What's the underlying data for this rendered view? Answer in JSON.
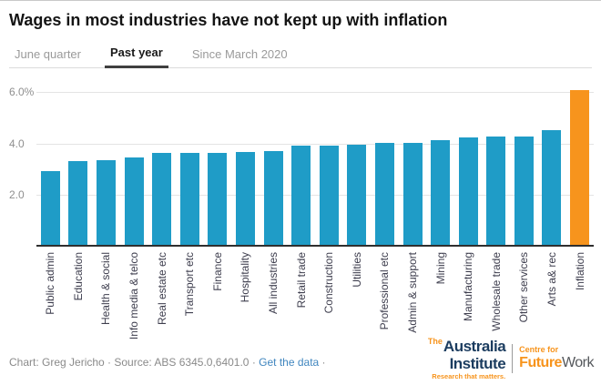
{
  "header": {
    "title": "Wages in most industries have not kept up with inflation"
  },
  "tabs": {
    "items": [
      {
        "label": "June quarter",
        "active": false
      },
      {
        "label": "Past year",
        "active": true
      },
      {
        "label": "Since March 2020",
        "active": false
      }
    ]
  },
  "chart_data": {
    "type": "bar",
    "title": "Wages in most industries have not kept up with inflation",
    "subtitle_tab": "Past year",
    "categories": [
      "Public admin",
      "Education",
      "Health & social",
      "Info media & telco",
      "Real estate etc",
      "Transport etc",
      "Finance",
      "Hospitality",
      "All industries",
      "Retail trade",
      "Construction",
      "Utilities",
      "Professional etc",
      "Admin & support",
      "Mining",
      "Manufacturing",
      "Wholesale trade",
      "Other services",
      "Arts a& rec",
      "Inflation"
    ],
    "values": [
      2.85,
      3.25,
      3.3,
      3.4,
      3.55,
      3.55,
      3.55,
      3.6,
      3.65,
      3.85,
      3.85,
      3.9,
      3.95,
      3.95,
      4.05,
      4.15,
      4.2,
      4.2,
      4.45,
      6.0
    ],
    "unit": "%",
    "xlabel": "",
    "ylabel": "",
    "ylim": [
      0,
      6
    ],
    "yticks": [
      {
        "label": "6.0%",
        "value": 6
      },
      {
        "label": "4.0",
        "value": 4
      },
      {
        "label": "2.0",
        "value": 2
      }
    ],
    "grid": true,
    "legend": "none",
    "colors": {
      "bar": "#1f9cc7",
      "highlight": "#f7941d"
    },
    "highlight_category": "Inflation"
  },
  "footer": {
    "credit_prefix": "Chart: Greg Jericho · Source: ABS 6345.0,6401.0 · ",
    "link_label": "Get the data",
    "credit_suffix": " ·",
    "link_color": "#4086bf"
  },
  "logo": {
    "the": "The",
    "australia": "Australia",
    "institute": "Institute",
    "tagline": "Research that matters.",
    "centre_for": "Centre for",
    "future": "Future",
    "work": "Work",
    "navy": "#1b3c5f",
    "orange": "#f7941d",
    "work_color": "#55585c"
  }
}
